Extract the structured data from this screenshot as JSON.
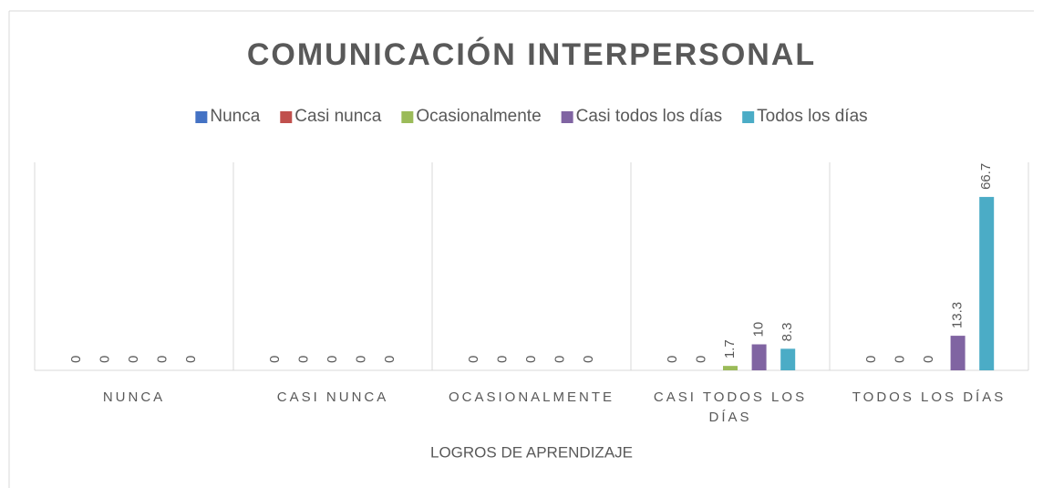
{
  "chart_data": {
    "type": "bar",
    "title": "COMUNICACIÓN INTERPERSONAL",
    "x_label": "LOGROS DE APRENDIZAJE",
    "categories": [
      "NUNCA",
      "CASI NUNCA",
      "OCASIONALMENTE",
      "CASI TODOS LOS DÍAS",
      "TODOS LOS DÍAS"
    ],
    "series": [
      {
        "name": "Nunca",
        "color": "#4472c4",
        "values": [
          0,
          0,
          0,
          0,
          0
        ]
      },
      {
        "name": "Casi nunca",
        "color": "#c0504d",
        "values": [
          0,
          0,
          0,
          0,
          0
        ]
      },
      {
        "name": "Ocasionalmente",
        "color": "#9bbb59",
        "values": [
          0,
          0,
          0,
          1.7,
          0
        ]
      },
      {
        "name": "Casi todos los días",
        "color": "#8064a2",
        "values": [
          0,
          0,
          0,
          10,
          13.3
        ]
      },
      {
        "name": "Todos los días",
        "color": "#4bacc6",
        "values": [
          0,
          0,
          0,
          8.3,
          66.7
        ]
      }
    ],
    "ylim": [
      0,
      80
    ],
    "legend": "top"
  }
}
